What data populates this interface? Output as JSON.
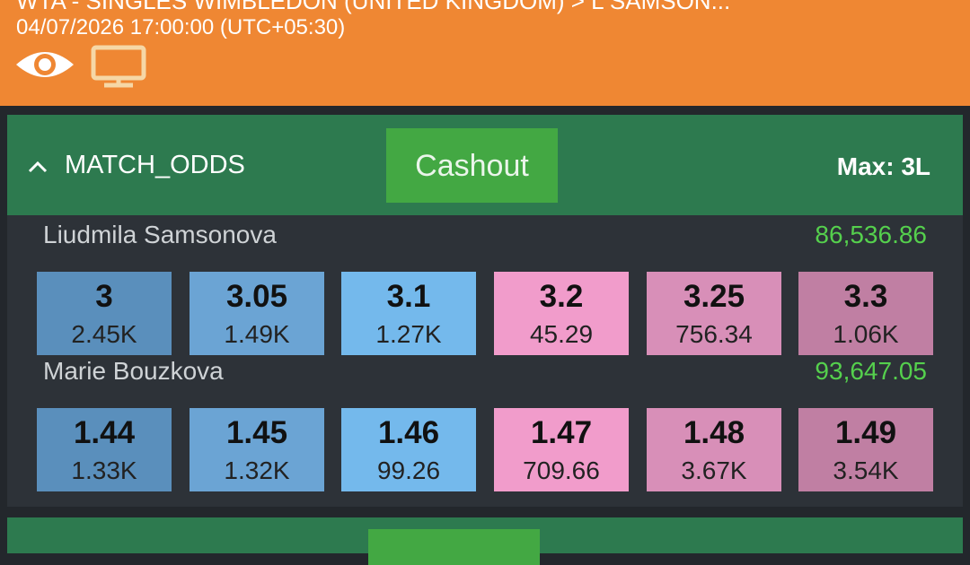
{
  "header": {
    "title": "WTA - SINGLES WIMBLEDON (UNITED KINGDOM) > L SAMSON...",
    "datetime": "04/07/2026 17:00:00 (UTC+05:30)"
  },
  "market": {
    "name": "MATCH_ODDS",
    "cashout": "Cashout",
    "max": "Max: 3L",
    "runners": [
      {
        "name": "Liudmila Samsonova",
        "position": "86,536.86",
        "odds": [
          {
            "price": "3",
            "size": "2.45K"
          },
          {
            "price": "3.05",
            "size": "1.49K"
          },
          {
            "price": "3.1",
            "size": "1.27K"
          },
          {
            "price": "3.2",
            "size": "45.29"
          },
          {
            "price": "3.25",
            "size": "756.34"
          },
          {
            "price": "3.3",
            "size": "1.06K"
          }
        ]
      },
      {
        "name": "Marie Bouzkova",
        "position": "93,647.05",
        "odds": [
          {
            "price": "1.44",
            "size": "1.33K"
          },
          {
            "price": "1.45",
            "size": "1.32K"
          },
          {
            "price": "1.46",
            "size": "99.26"
          },
          {
            "price": "1.47",
            "size": "709.66"
          },
          {
            "price": "1.48",
            "size": "3.67K"
          },
          {
            "price": "1.49",
            "size": "3.54K"
          }
        ]
      }
    ]
  }
}
